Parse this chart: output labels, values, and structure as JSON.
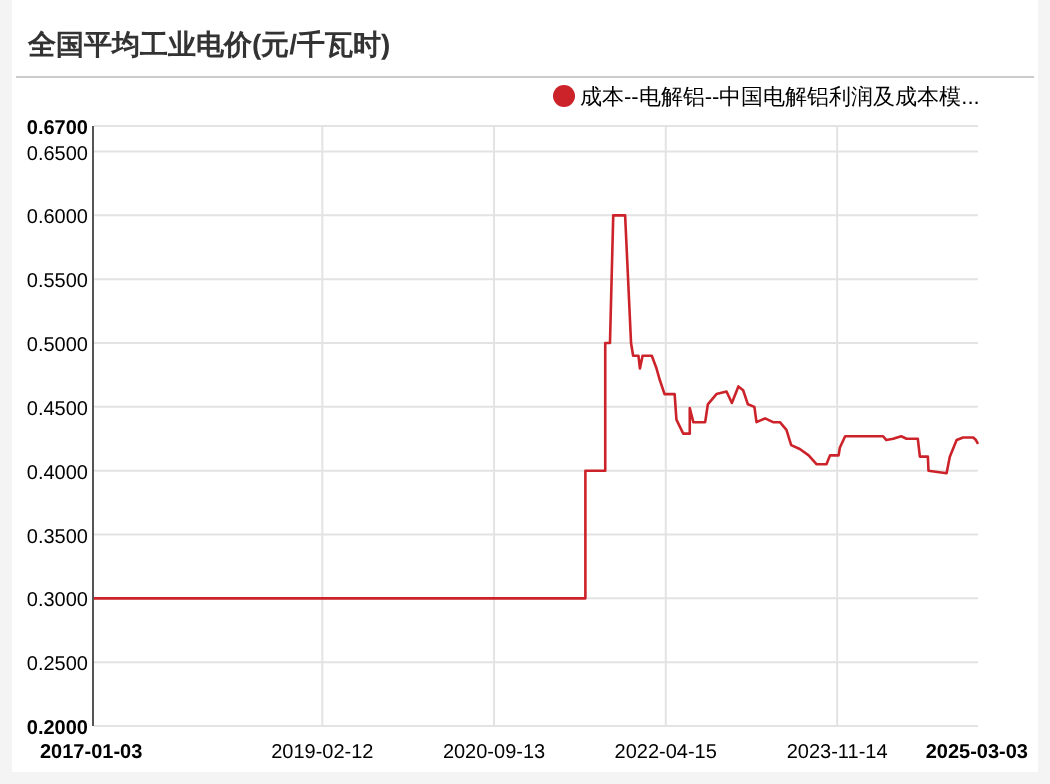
{
  "chart_data": {
    "type": "line",
    "title": "全国平均工业电价(元/千瓦时)",
    "x": [
      "2017-01-03",
      "2021-07-18",
      "2021-07-18",
      "2021-09-23",
      "2021-09-23",
      "2021-10-09",
      "2021-10-20",
      "2021-11-29",
      "2021-12-19",
      "2021-12-26",
      "2022-01-13",
      "2022-01-18",
      "2022-01-27",
      "2022-02-27",
      "2022-03-15",
      "2022-03-26",
      "2022-04-11",
      "2022-05-15",
      "2022-05-21",
      "2022-06-13",
      "2022-07-05",
      "2022-07-05",
      "2022-07-17",
      "2022-08-26",
      "2022-09-04",
      "2022-10-03",
      "2022-11-06",
      "2022-11-24",
      "2022-12-16",
      "2023-01-01",
      "2023-01-17",
      "2023-02-08",
      "2023-02-15",
      "2023-03-16",
      "2023-04-12",
      "2023-05-05",
      "2023-05-27",
      "2023-06-12",
      "2023-07-11",
      "2023-08-10",
      "2023-09-06",
      "2023-10-09",
      "2023-10-21",
      "2023-11-19",
      "2023-11-23",
      "2023-12-11",
      "2024-04-17",
      "2024-04-28",
      "2024-05-21",
      "2024-06-17",
      "2024-07-05",
      "2024-08-12",
      "2024-08-19",
      "2024-09-15",
      "2024-09-17",
      "2024-11-17",
      "2024-11-28",
      "2024-12-21",
      "2025-01-12",
      "2025-02-15",
      "2025-02-24",
      "2025-03-03"
    ],
    "series": [
      {
        "name": "成本--电解铝--中国电解铝利润及成本模...",
        "color": "#cc2229",
        "values": [
          0.3,
          0.3,
          0.4,
          0.4,
          0.5,
          0.5,
          0.6,
          0.6,
          0.5,
          0.49,
          0.49,
          0.48,
          0.49,
          0.49,
          0.48,
          0.471,
          0.46,
          0.46,
          0.44,
          0.429,
          0.429,
          0.449,
          0.438,
          0.438,
          0.452,
          0.46,
          0.462,
          0.453,
          0.466,
          0.463,
          0.452,
          0.45,
          0.438,
          0.441,
          0.438,
          0.438,
          0.432,
          0.42,
          0.417,
          0.412,
          0.405,
          0.405,
          0.412,
          0.412,
          0.418,
          0.427,
          0.427,
          0.424,
          0.425,
          0.427,
          0.425,
          0.425,
          0.411,
          0.411,
          0.4,
          0.398,
          0.411,
          0.424,
          0.426,
          0.426,
          0.424,
          0.421
        ]
      }
    ],
    "xlim": [
      "2017-01-03",
      "2025-03-03"
    ],
    "xticks": [
      "2017-01-03",
      "2019-02-12",
      "2020-09-13",
      "2022-04-15",
      "2023-11-14",
      "2025-03-03"
    ],
    "ylim": [
      0.2,
      0.67
    ],
    "yticks": [
      {
        "value": 0.2,
        "label": "0.2000"
      },
      {
        "value": 0.25,
        "label": "0.2500"
      },
      {
        "value": 0.3,
        "label": "0.3000"
      },
      {
        "value": 0.35,
        "label": "0.3500"
      },
      {
        "value": 0.4,
        "label": "0.4000"
      },
      {
        "value": 0.45,
        "label": "0.4500"
      },
      {
        "value": 0.5,
        "label": "0.5000"
      },
      {
        "value": 0.55,
        "label": "0.5500"
      },
      {
        "value": 0.6,
        "label": "0.6000"
      },
      {
        "value": 0.65,
        "label": "0.6500"
      },
      {
        "value": 0.67,
        "label": "0.6700"
      }
    ],
    "grid": true,
    "legend": "top right",
    "marker": "none",
    "line_style": "solid"
  }
}
